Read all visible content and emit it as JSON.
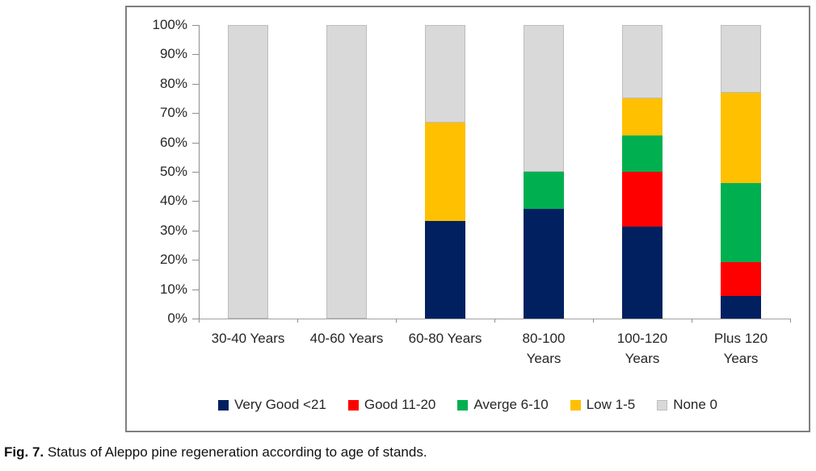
{
  "figure": {
    "caption_label": "Fig. 7.",
    "caption_text": " Status of Aleppo pine regeneration according to age of stands."
  },
  "chart_data": {
    "type": "bar",
    "subtype": "stacked-percentage",
    "title": "",
    "xlabel": "",
    "ylabel": "",
    "ylim": [
      0,
      100
    ],
    "grid": false,
    "legend_position": "bottom",
    "categories": [
      "30-40 Years",
      "40-60 Years",
      "60-80 Years",
      "80-100 Years",
      "100-120 Years",
      "Plus 120 Years"
    ],
    "category_label_lines": [
      [
        "30-40 Years"
      ],
      [
        "40-60 Years"
      ],
      [
        "60-80 Years"
      ],
      [
        "80-100",
        "Years"
      ],
      [
        "100-120",
        "Years"
      ],
      [
        "Plus 120",
        "Years"
      ]
    ],
    "y_ticks": [
      "0%",
      "10%",
      "20%",
      "30%",
      "40%",
      "50%",
      "60%",
      "70%",
      "80%",
      "90%",
      "100%"
    ],
    "series": [
      {
        "name": "Very Good <21",
        "color": "#002060",
        "outlined": false,
        "values": [
          0,
          0,
          33.33,
          37.5,
          31.25,
          7.7
        ]
      },
      {
        "name": "Good 11-20",
        "color": "#FF0000",
        "outlined": false,
        "values": [
          0,
          0,
          0,
          0,
          18.75,
          11.5
        ]
      },
      {
        "name": "Averge 6-10",
        "color": "#00B050",
        "outlined": false,
        "values": [
          0,
          0,
          0,
          12.5,
          12.5,
          26.9
        ]
      },
      {
        "name": "Low 1-5",
        "color": "#FFC000",
        "outlined": false,
        "values": [
          0,
          0,
          33.34,
          0,
          12.5,
          30.8
        ]
      },
      {
        "name": "None 0",
        "color": "#D9D9D9",
        "outlined": true,
        "values": [
          100,
          100,
          33.33,
          50,
          25,
          23.1
        ]
      }
    ]
  }
}
